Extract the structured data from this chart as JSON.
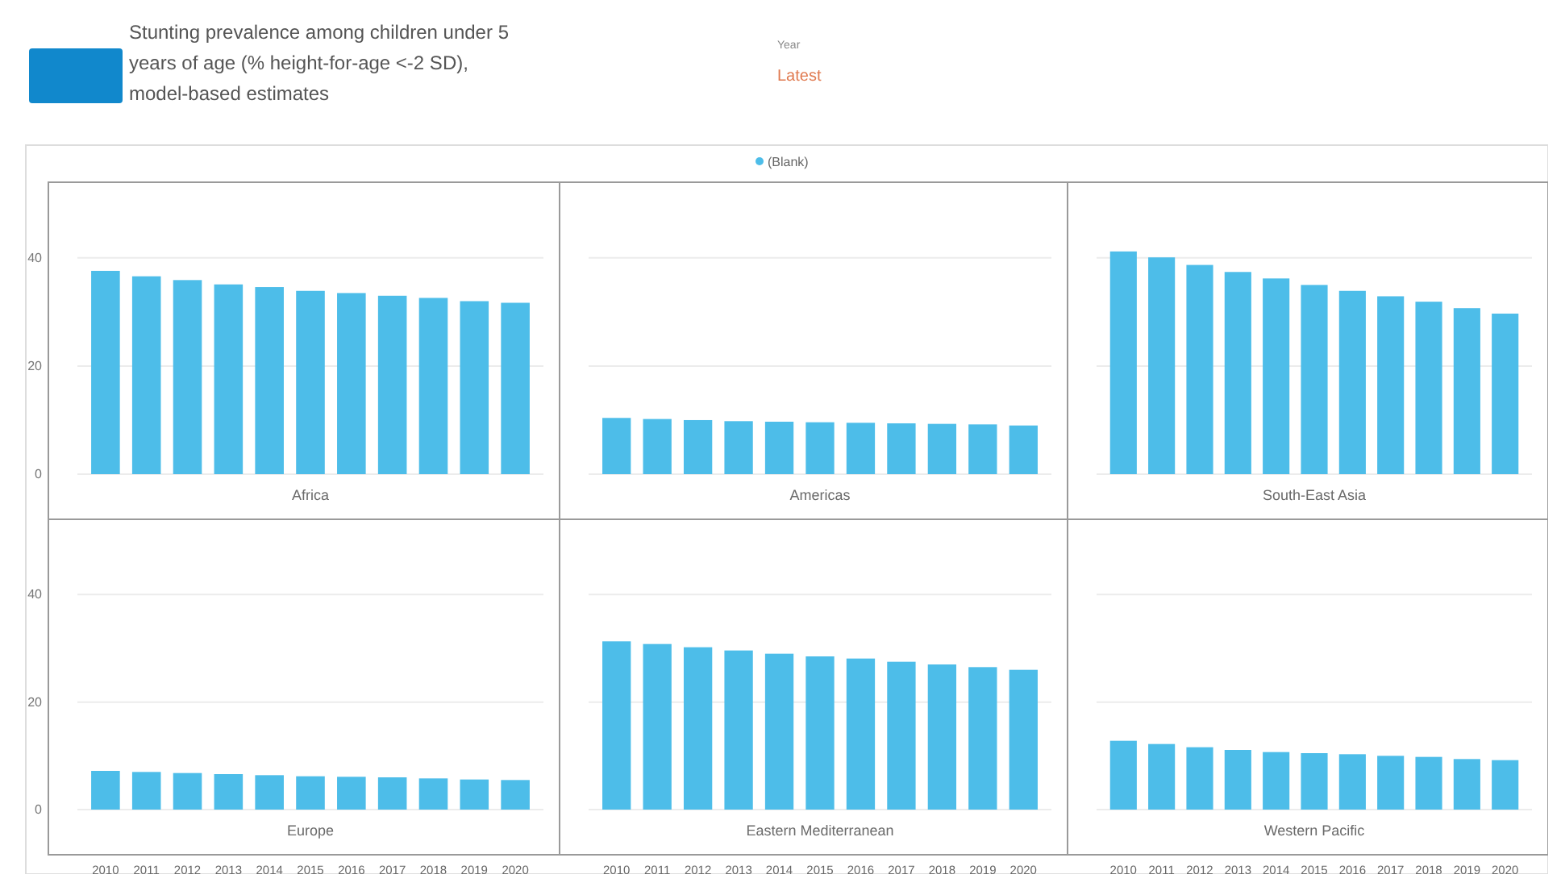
{
  "chart_data": [
    {
      "type": "bar",
      "title": "Stunting prevalence among children under 5 years of age (% height-for-age <-2 SD), model-based estimates",
      "annotations": [
        "Year",
        "Latest"
      ],
      "xlabel": "Africa",
      "categories": [
        "2010",
        "2011",
        "2012",
        "2013",
        "2014",
        "2015",
        "2016",
        "2017",
        "2018",
        "2019",
        "2020"
      ],
      "series": [
        {
          "name": "(Blank)",
          "color": "#4dbde9",
          "values": [
            37.6,
            36.6,
            35.9,
            35.1,
            34.6,
            33.9,
            33.5,
            33.0,
            32.6,
            32.0,
            31.7
          ]
        }
      ],
      "ylim": [
        0,
        54
      ],
      "yticks": [
        0,
        20,
        40
      ],
      "grid": "y",
      "legend": "top",
      "tick_labels": "y"
    },
    {
      "type": "bar",
      "xlabel": "Americas",
      "categories": [
        "2010",
        "2011",
        "2012",
        "2013",
        "2014",
        "2015",
        "2016",
        "2017",
        "2018",
        "2019",
        "2020"
      ],
      "series": [
        {
          "color": "#4dbde9",
          "values": [
            10.4,
            10.2,
            10.0,
            9.8,
            9.7,
            9.6,
            9.5,
            9.4,
            9.3,
            9.2,
            9.0
          ]
        }
      ],
      "ylim": [
        0,
        54
      ],
      "yticks": [
        0,
        20,
        40
      ],
      "grid": "y",
      "tick_labels": false
    },
    {
      "type": "bar",
      "xlabel": "South-East Asia",
      "categories": [
        "2010",
        "2011",
        "2012",
        "2013",
        "2014",
        "2015",
        "2016",
        "2017",
        "2018",
        "2019",
        "2020"
      ],
      "series": [
        {
          "color": "#4dbde9",
          "values": [
            41.2,
            40.1,
            38.7,
            37.4,
            36.2,
            35.0,
            33.9,
            32.9,
            31.9,
            30.7,
            29.7
          ]
        }
      ],
      "ylim": [
        0,
        54
      ],
      "yticks": [
        0,
        20,
        40
      ],
      "grid": "y",
      "tick_labels": false
    },
    {
      "type": "bar",
      "xlabel": "Europe",
      "categories": [
        "2010",
        "2011",
        "2012",
        "2013",
        "2014",
        "2015",
        "2016",
        "2017",
        "2018",
        "2019",
        "2020"
      ],
      "series": [
        {
          "color": "#4dbde9",
          "values": [
            7.2,
            7.0,
            6.8,
            6.6,
            6.4,
            6.2,
            6.1,
            6.0,
            5.8,
            5.6,
            5.5
          ]
        }
      ],
      "ylim": [
        0,
        54
      ],
      "yticks": [
        0,
        20,
        40
      ],
      "grid": "y"
    },
    {
      "type": "bar",
      "xlabel": "Eastern Mediterranean",
      "categories": [
        "2010",
        "2011",
        "2012",
        "2013",
        "2014",
        "2015",
        "2016",
        "2017",
        "2018",
        "2019",
        "2020"
      ],
      "series": [
        {
          "color": "#4dbde9",
          "values": [
            31.3,
            30.8,
            30.2,
            29.6,
            29.0,
            28.5,
            28.1,
            27.5,
            27.0,
            26.5,
            26.0
          ]
        }
      ],
      "ylim": [
        0,
        54
      ],
      "yticks": [
        0,
        20,
        40
      ],
      "grid": "y",
      "tick_labels": "x"
    },
    {
      "type": "bar",
      "xlabel": "Western Pacific",
      "categories": [
        "2010",
        "2011",
        "2012",
        "2013",
        "2014",
        "2015",
        "2016",
        "2017",
        "2018",
        "2019",
        "2020"
      ],
      "series": [
        {
          "color": "#4dbde9",
          "values": [
            12.8,
            12.2,
            11.6,
            11.1,
            10.7,
            10.5,
            10.3,
            10.0,
            9.8,
            9.4,
            9.2
          ]
        }
      ],
      "ylim": [
        0,
        54
      ],
      "yticks": [
        0,
        20,
        40
      ],
      "grid": "y",
      "tick_labels": "x"
    }
  ]
}
